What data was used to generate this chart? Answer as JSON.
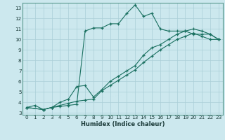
{
  "xlabel": "Humidex (Indice chaleur)",
  "bg_color": "#cce8ee",
  "grid_color": "#aacfd8",
  "line_color": "#1a7060",
  "xlim": [
    -0.5,
    23.5
  ],
  "ylim": [
    2.8,
    13.5
  ],
  "xticks": [
    0,
    1,
    2,
    3,
    4,
    5,
    6,
    7,
    8,
    9,
    10,
    11,
    12,
    13,
    14,
    15,
    16,
    17,
    18,
    19,
    20,
    21,
    22,
    23
  ],
  "yticks": [
    3,
    4,
    5,
    6,
    7,
    8,
    9,
    10,
    11,
    12,
    13
  ],
  "line1_x": [
    0,
    1,
    2,
    3,
    4,
    5,
    6,
    7,
    8,
    9,
    10,
    11,
    12,
    13,
    14,
    15,
    16,
    17,
    18,
    19,
    20,
    21,
    22,
    23
  ],
  "line1_y": [
    3.5,
    3.7,
    3.3,
    3.5,
    3.6,
    3.7,
    3.8,
    10.8,
    11.1,
    11.1,
    11.5,
    11.5,
    12.5,
    13.3,
    12.2,
    12.5,
    11.0,
    10.8,
    10.8,
    10.8,
    10.5,
    10.5,
    10.5,
    10.0
  ],
  "line2_x": [
    0,
    2,
    3,
    4,
    5,
    6,
    7,
    8,
    9,
    10,
    11,
    12,
    13,
    14,
    15,
    16,
    17,
    18,
    19,
    20,
    21,
    22,
    23
  ],
  "line2_y": [
    3.5,
    3.3,
    3.5,
    4.0,
    4.3,
    5.5,
    5.6,
    4.5,
    5.2,
    6.0,
    6.5,
    7.0,
    7.5,
    8.5,
    9.2,
    9.5,
    10.0,
    10.5,
    10.8,
    11.0,
    10.8,
    10.5,
    10.0
  ],
  "line3_x": [
    0,
    2,
    3,
    4,
    5,
    6,
    7,
    8,
    9,
    10,
    11,
    12,
    13,
    14,
    15,
    16,
    17,
    18,
    19,
    20,
    21,
    22,
    23
  ],
  "line3_y": [
    3.5,
    3.3,
    3.5,
    3.7,
    3.9,
    4.1,
    4.2,
    4.3,
    5.1,
    5.6,
    6.1,
    6.6,
    7.1,
    7.8,
    8.4,
    9.0,
    9.5,
    10.0,
    10.3,
    10.6,
    10.3,
    10.0,
    10.0
  ],
  "xlabel_fontsize": 6.0,
  "tick_labelsize": 5.2,
  "lw": 0.8,
  "markersize": 3.5
}
